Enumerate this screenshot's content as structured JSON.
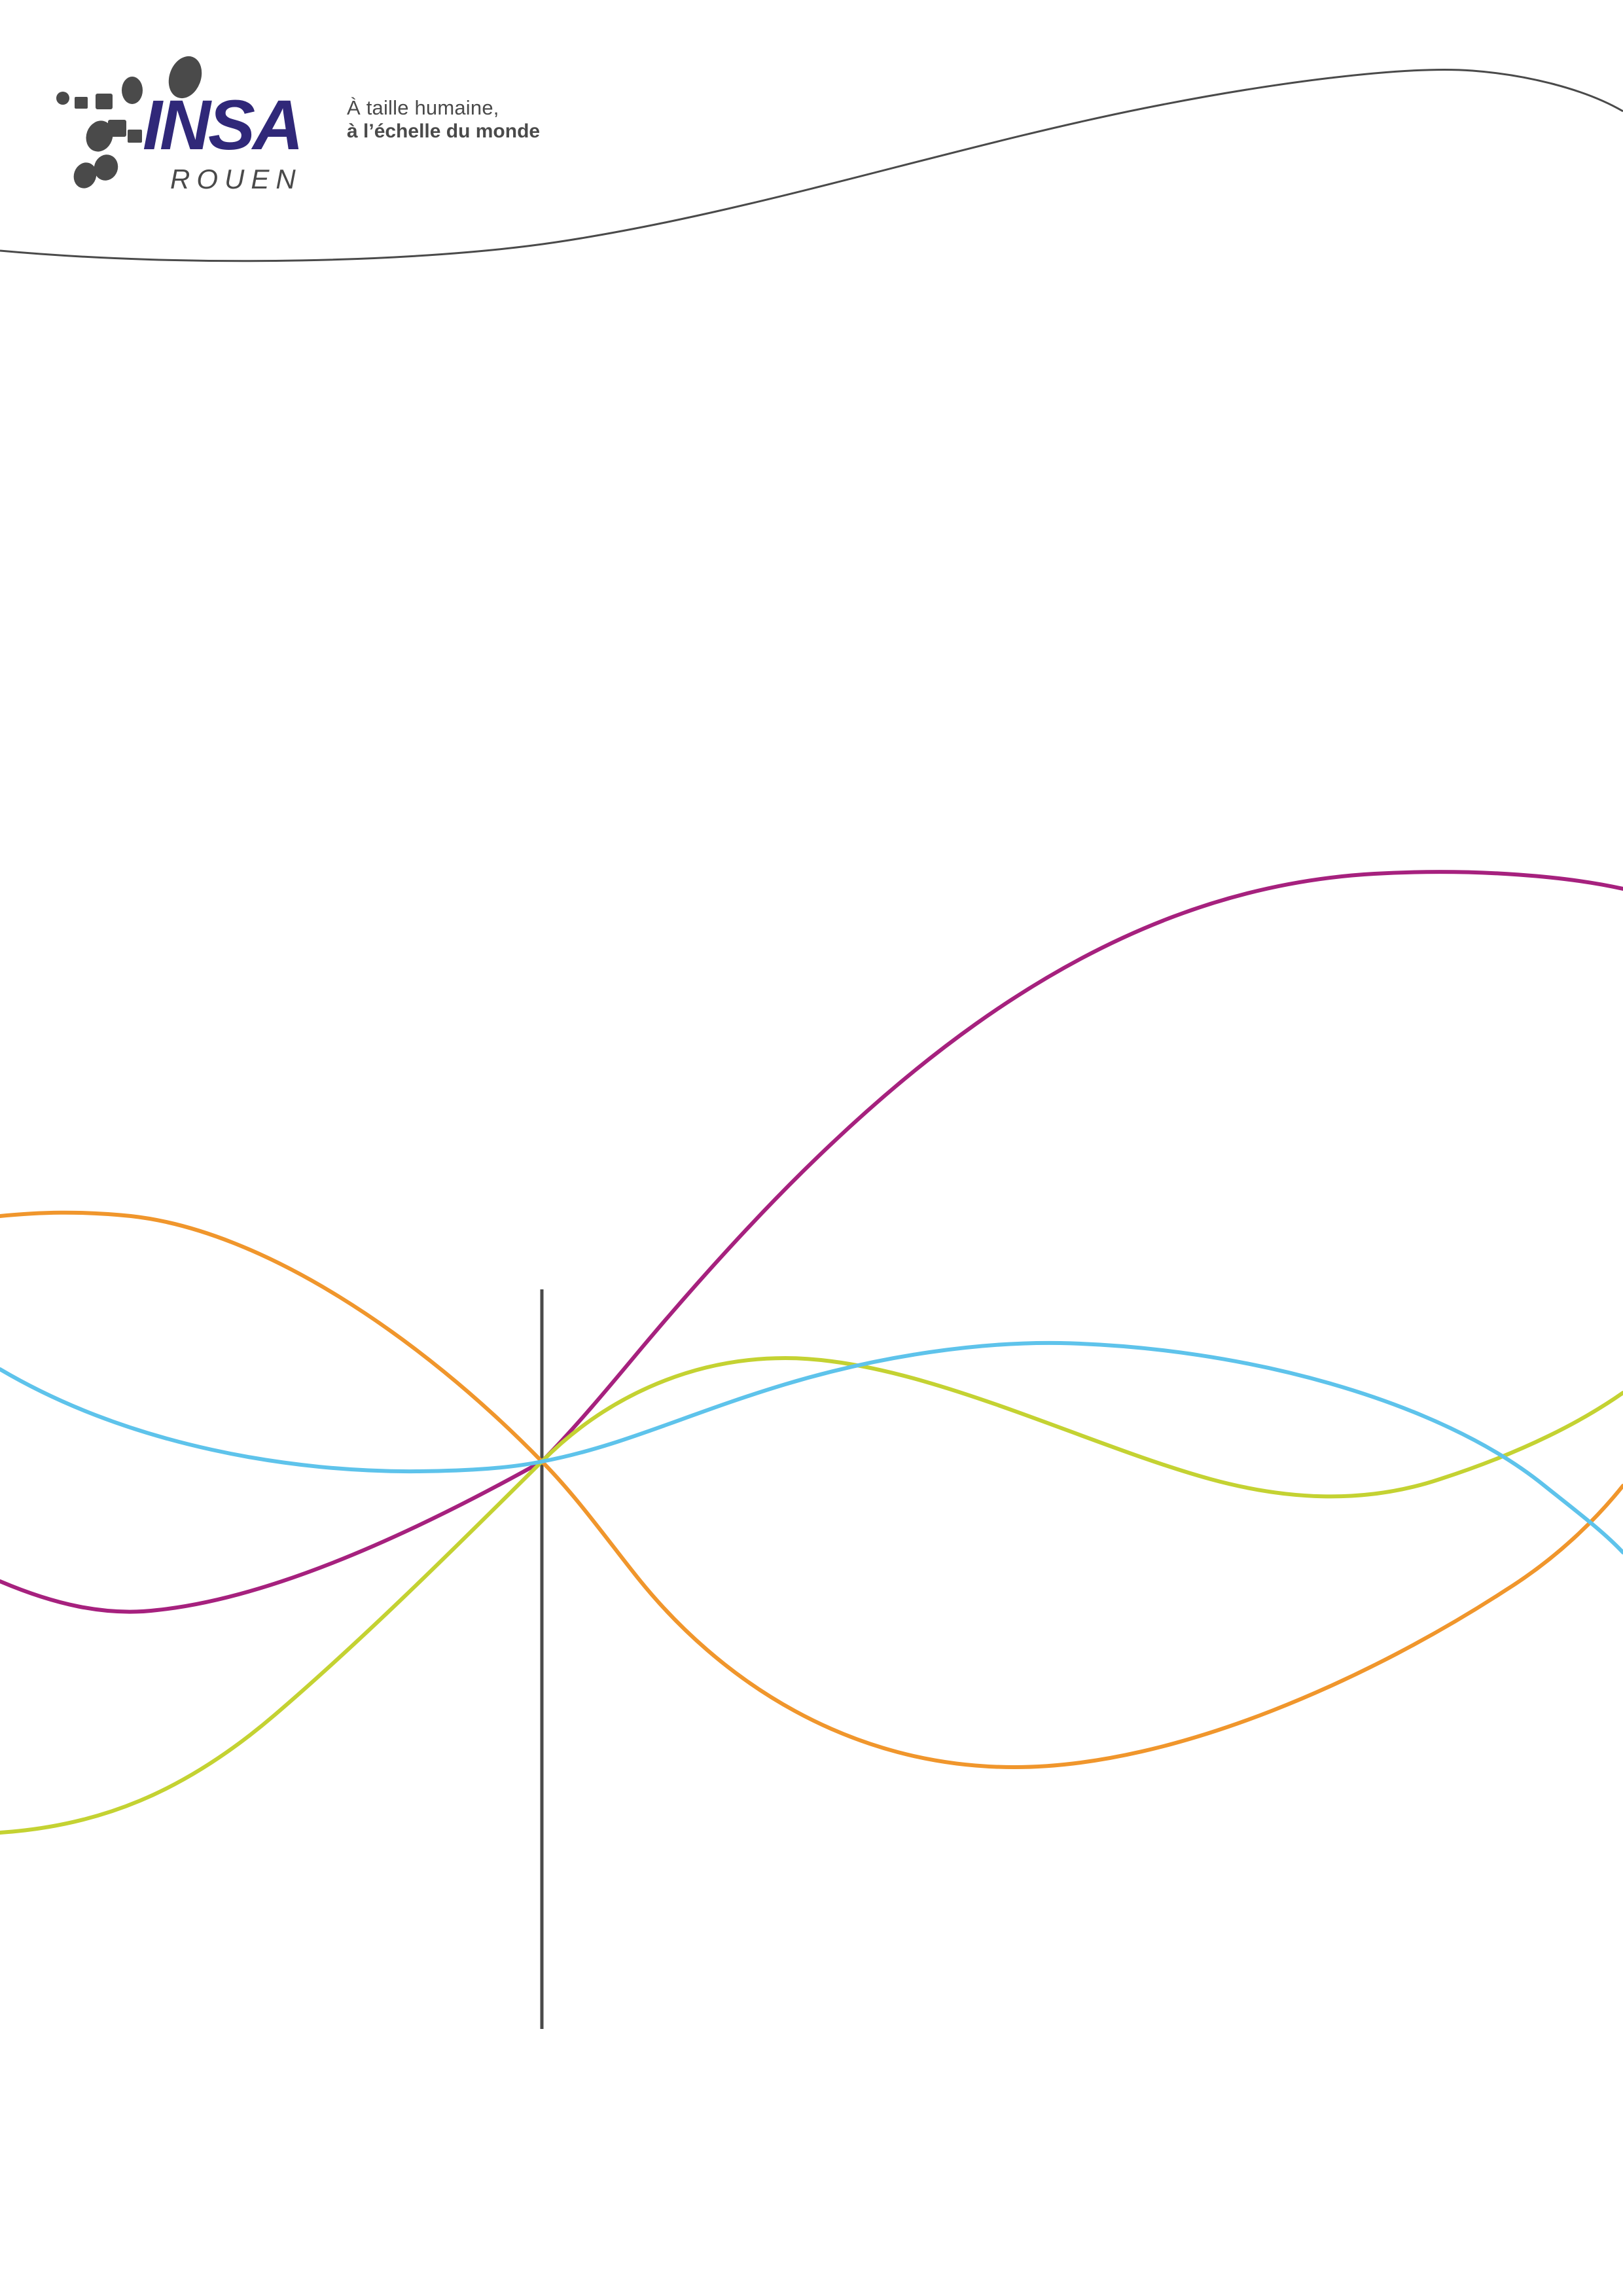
{
  "logo": {
    "name": "INSA",
    "city": "ROUEN",
    "colors": {
      "wordmark": "#302879",
      "dots": "#4a4a4a"
    }
  },
  "tagline": {
    "line1": "À taille humaine,",
    "line2": "à l’échelle du monde"
  },
  "decoration": {
    "header_wave_color": "#4a4a4a",
    "vertical_rule_color": "#4a4a4a",
    "curve_colors": {
      "magenta": "#a6217e",
      "orange": "#f0962c",
      "lime": "#c4d232",
      "sky": "#5ec3eb"
    }
  }
}
